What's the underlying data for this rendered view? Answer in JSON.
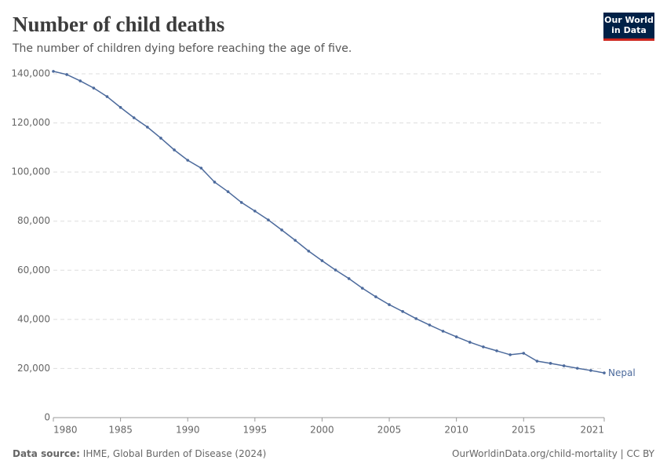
{
  "chart_data": {
    "type": "line",
    "title": "Number of child deaths",
    "subtitle": "The number of children dying before reaching the age of five.",
    "source_label": "Data source:",
    "source": "IHME, Global Burden of Disease (2024)",
    "footer_right": "OurWorldinData.org/child-mortality | CC BY",
    "logo": [
      "Our World",
      "in Data"
    ],
    "x": [
      1980,
      1981,
      1982,
      1983,
      1984,
      1985,
      1986,
      1987,
      1988,
      1989,
      1990,
      1991,
      1992,
      1993,
      1994,
      1995,
      1996,
      1997,
      1998,
      1999,
      2000,
      2001,
      2002,
      2003,
      2004,
      2005,
      2006,
      2007,
      2008,
      2009,
      2010,
      2011,
      2012,
      2013,
      2014,
      2015,
      2016,
      2017,
      2018,
      2019,
      2020,
      2021
    ],
    "series": [
      {
        "name": "Nepal",
        "color": "#4c6a9c",
        "values": [
          141000,
          139700,
          137100,
          134200,
          130700,
          126300,
          122100,
          118300,
          113800,
          109000,
          104800,
          101600,
          95900,
          92000,
          87600,
          84100,
          80500,
          76400,
          72200,
          67800,
          63900,
          60100,
          56600,
          52700,
          49200,
          46000,
          43200,
          40300,
          37700,
          35200,
          32900,
          30700,
          28800,
          27200,
          25600,
          26200,
          23000,
          22100,
          21100,
          20100,
          19200,
          18200
        ]
      }
    ],
    "xlim": [
      1980,
      2021
    ],
    "xticks": [
      1980,
      1985,
      1990,
      1995,
      2000,
      2005,
      2010,
      2015,
      2021
    ],
    "ylim": [
      0,
      140000
    ],
    "yticks": [
      0,
      {
        "value": 20000,
        "label": "20,000"
      },
      {
        "value": 40000,
        "label": "40,000"
      },
      {
        "value": 60000,
        "label": "60,000"
      },
      {
        "value": 80000,
        "label": "80,000"
      },
      {
        "value": 100000,
        "label": "100,000"
      },
      {
        "value": 120000,
        "label": "120,000"
      },
      {
        "value": 140000,
        "label": "140,000"
      }
    ],
    "grid": true
  }
}
